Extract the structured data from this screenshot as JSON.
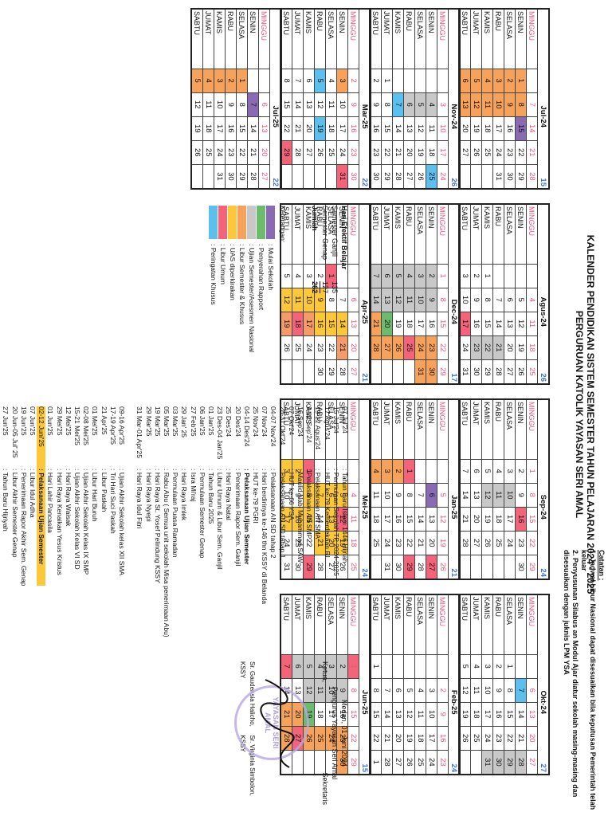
{
  "header": {
    "title_line1": "KALENDER PENDIDIKAN SISTEM SEMESTER  TAHUN PELAJARAN 2024 - 2025",
    "title_line2": "PERGURUAN KATOLIK YAYASAN  SERI AMAL"
  },
  "notes": {
    "heading": "Catatan :",
    "items": [
      "1. Jadwal Libur Nasional dapat disesuaikan bila keputusan Pemerintah telah keluar",
      "2. Penyusunan Silabus an Modul Ajar diatur sekolah masing-masing dan disesuaikan dengan juknis LPM YSA"
    ]
  },
  "day_names": [
    "MINGGU",
    "SENIN",
    "SELASA",
    "RABU",
    "KAMIS",
    "JUMAT",
    "SABTU"
  ],
  "months": [
    {
      "name": "Jul-24",
      "weeks": "15",
      "cols": [
        [
          "",
          "1",
          "2",
          "3",
          "4",
          "5",
          "6"
        ],
        [
          "7",
          "8",
          "9",
          "10",
          "11",
          "12",
          "13"
        ],
        [
          "14",
          "15",
          "16",
          "17",
          "18",
          "19",
          "20"
        ],
        [
          "21",
          "22",
          "23",
          "24",
          "25",
          "26",
          "27"
        ],
        [
          "28",
          "29",
          "30",
          "31",
          "",
          "",
          ""
        ]
      ],
      "colors": {
        "0-1": "orange",
        "0-2": "orange",
        "0-3": "orange",
        "0-4": "orange",
        "0-5": "orange",
        "0-6": "orange",
        "1-1": "orange",
        "1-2": "orange",
        "1-3": "orange",
        "1-4": "orange",
        "1-5": "orange",
        "1-6": "orange",
        "2-1": "purple"
      }
    },
    {
      "name": "Agus-24",
      "weeks": "26",
      "cols": [
        [
          "",
          "",
          "",
          "",
          "1",
          "2",
          "3"
        ],
        [
          "4",
          "5",
          "6",
          "7",
          "8",
          "9",
          "10"
        ],
        [
          "11",
          "12",
          "13",
          "14",
          "15",
          "16",
          "17"
        ],
        [
          "18",
          "19",
          "20",
          "21",
          "22",
          "23",
          "24"
        ],
        [
          "25",
          "26",
          "27",
          "28",
          "29",
          "30",
          "31"
        ]
      ],
      "colors": {
        "2-6": "pink",
        "3-3": "gray",
        "3-4": "gray",
        "3-5": "gray"
      }
    },
    {
      "name": "Sep-24",
      "weeks": "24",
      "cols": [
        [
          "1",
          "2",
          "3",
          "4",
          "5",
          "6",
          "7"
        ],
        [
          "8",
          "9",
          "10",
          "11",
          "12",
          "13",
          "14"
        ],
        [
          "15",
          "16",
          "17",
          "18",
          "19",
          "20",
          "21"
        ],
        [
          "22",
          "23",
          "24",
          "25",
          "26",
          "27",
          "28"
        ],
        [
          "29",
          "30",
          "",
          "",
          "",
          "",
          ""
        ]
      ],
      "colors": {
        "1-2": "gray",
        "1-3": "gray",
        "1-4": "gray",
        "2-1": "pink"
      }
    },
    {
      "name": "Okt-24",
      "weeks": "27",
      "cols": [
        [
          "",
          "",
          "1",
          "2",
          "3",
          "4",
          "5"
        ],
        [
          "6",
          "7",
          "8",
          "9",
          "10",
          "11",
          "12"
        ],
        [
          "13",
          "14",
          "15",
          "16",
          "17",
          "18",
          "19"
        ],
        [
          "20",
          "21",
          "22",
          "23",
          "24",
          "25",
          "26"
        ],
        [
          "27",
          "28",
          "29",
          "30",
          "31",
          "",
          ""
        ]
      ],
      "colors": {
        "1-1": "blue",
        "4-1": "gray",
        "4-2": "gray",
        "4-3": "gray",
        "4-4": "gray"
      }
    },
    {
      "name": "Nov-24",
      "weeks": "26",
      "cols": [
        [
          "",
          "",
          "",
          "",
          "",
          "1",
          "2"
        ],
        [
          "3",
          "4",
          "5",
          "6",
          "7",
          "8",
          "9"
        ],
        [
          "10",
          "11",
          "12",
          "13",
          "14",
          "15",
          "16"
        ],
        [
          "17",
          "18",
          "19",
          "20",
          "21",
          "22",
          "23"
        ],
        [
          "24",
          "25",
          "26",
          "27",
          "28",
          "29",
          "30"
        ]
      ],
      "colors": {
        "1-1": "gray",
        "1-2": "gray",
        "1-3": "gray",
        "1-4": "blue",
        "4-1": "blue"
      }
    },
    {
      "name": "Dec-24",
      "weeks": "17",
      "cols": [
        [
          "1",
          "2",
          "3",
          "4",
          "5",
          "6",
          "7"
        ],
        [
          "8",
          "9",
          "10",
          "11",
          "12",
          "13",
          "14"
        ],
        [
          "15",
          "16",
          "17",
          "18",
          "19",
          "20",
          "21"
        ],
        [
          "22",
          "23",
          "24",
          "25",
          "26",
          "27",
          "28"
        ],
        [
          "29",
          "30",
          "31",
          "",
          "",
          "",
          ""
        ]
      ],
      "colors": {
        "0-1": "gray",
        "0-2": "gray",
        "0-3": "gray",
        "0-4": "gray",
        "0-5": "gray",
        "0-6": "gray",
        "1-1": "gray",
        "1-2": "gray",
        "1-3": "gray",
        "1-4": "gray",
        "1-5": "gray",
        "1-6": "gray",
        "2-5": "green",
        "2-6": "orange",
        "3-1": "orange",
        "3-2": "orange",
        "3-3": "pink",
        "3-4": "orange",
        "3-5": "orange",
        "3-6": "orange",
        "4-1": "orange",
        "4-2": "orange"
      }
    },
    {
      "name": "Jan-25",
      "weeks": "21",
      "cols": [
        [
          "",
          "",
          "",
          "1",
          "2",
          "3",
          "4"
        ],
        [
          "5",
          "6",
          "7",
          "8",
          "9",
          "10",
          "11"
        ],
        [
          "12",
          "13",
          "14",
          "15",
          "16",
          "17",
          "18"
        ],
        [
          "19",
          "20",
          "21",
          "22",
          "23",
          "24",
          "25"
        ],
        [
          "26",
          "27",
          "28",
          "29",
          "30",
          "31",
          ""
        ]
      ],
      "colors": {
        "0-3": "pink",
        "0-4": "orange",
        "0-5": "orange",
        "0-6": "orange",
        "1-1": "purple",
        "4-1": "pink",
        "4-3": "pink"
      }
    },
    {
      "name": "Feb-25",
      "weeks": "24",
      "cols": [
        [
          "",
          "",
          "",
          "",
          "",
          "",
          "1"
        ],
        [
          "2",
          "3",
          "4",
          "5",
          "6",
          "7",
          "8"
        ],
        [
          "9",
          "10",
          "11",
          "12",
          "13",
          "14",
          "15"
        ],
        [
          "16",
          "17",
          "18",
          "19",
          "20",
          "21",
          "22"
        ],
        [
          "23",
          "24",
          "25",
          "26",
          "27",
          "28",
          "1"
        ]
      ],
      "colors": {}
    },
    {
      "name": "Mar-25",
      "weeks": "22",
      "cols": [
        [
          "2",
          "3",
          "4",
          "5",
          "6",
          "7",
          "8"
        ],
        [
          "9",
          "10",
          "11",
          "12",
          "13",
          "14",
          "15"
        ],
        [
          "16",
          "17",
          "18",
          "19",
          "20",
          "21",
          "22"
        ],
        [
          "23",
          "24",
          "25",
          "26",
          "27",
          "28",
          "29"
        ],
        [
          "30",
          "31",
          "",
          "",
          "",
          "",
          ""
        ]
      ],
      "colors": {
        "0-1": "orange",
        "0-3": "blue",
        "2-3": "blue",
        "3-6": "pink",
        "4-1": "pink"
      }
    },
    {
      "name": "Apr-25",
      "weeks": "21",
      "cols": [
        [
          "",
          "",
          "1",
          "2",
          "3",
          "4",
          "5"
        ],
        [
          "6",
          "7",
          "8",
          "9",
          "10",
          "11",
          "12"
        ],
        [
          "13",
          "14",
          "15",
          "16",
          "17",
          "18",
          "19"
        ],
        [
          "20",
          "21",
          "22",
          "23",
          "24",
          "25",
          "26"
        ],
        [
          "27",
          "28",
          "29",
          "30",
          "",
          "",
          ""
        ]
      ],
      "colors": {
        "0-2": "pink",
        "1-3": "yellow",
        "1-4": "yellow",
        "1-5": "yellow",
        "1-6": "yellow",
        "2-1": "yellow",
        "2-2": "yellow",
        "2-3": "yellow",
        "2-4": "salmon",
        "2-5": "pink",
        "2-6": "salmon",
        "3-1": "salmon"
      }
    },
    {
      "name": "Mei-25",
      "weeks": "24",
      "cols": [
        [
          "",
          "",
          "",
          "",
          "1",
          "2",
          "3"
        ],
        [
          "4",
          "5",
          "6",
          "7",
          "8",
          "9",
          "10"
        ],
        [
          "11",
          "12",
          "13",
          "14",
          "15",
          "16",
          "17"
        ],
        [
          "18",
          "19",
          "20",
          "21",
          "22",
          "23",
          "24"
        ],
        [
          "25",
          "26",
          "27",
          "28",
          "29",
          "30",
          "31"
        ]
      ],
      "colors": {
        "0-4": "pink",
        "0-5": "yellow",
        "0-6": "yellow",
        "1-1": "yellow",
        "1-2": "yellow",
        "1-3": "yellow",
        "1-4": "yellow",
        "2-1": "pink",
        "2-2": "yellow",
        "2-4": "yellow",
        "2-5": "yellow",
        "2-6": "yellow",
        "3-1": "yellow",
        "3-2": "yellow",
        "3-3": "yellow",
        "4-4": "pink"
      }
    },
    {
      "name": "Jun-25",
      "weeks": "15",
      "cols": [
        [
          "1",
          "2",
          "3",
          "4",
          "5",
          "6",
          "7"
        ],
        [
          "8",
          "9",
          "10",
          "11",
          "12",
          "13",
          "14"
        ],
        [
          "15",
          "16",
          "17",
          "18",
          "19",
          "20",
          "21"
        ],
        [
          "22",
          "23",
          "24",
          "25",
          "26",
          "27",
          "28"
        ],
        [
          "29",
          "30",
          "",
          "",
          "",
          "",
          ""
        ]
      ],
      "colors": {
        "0-0": "pink",
        "0-1": "gray",
        "0-2": "gray",
        "0-3": "gray",
        "0-4": "gray",
        "0-5": "gray",
        "0-6": "pink",
        "1-1": "gray",
        "1-2": "gray",
        "1-3": "gray",
        "1-4": "gray",
        "2-4": "green",
        "2-5": "orange",
        "2-6": "orange",
        "3-1": "orange",
        "3-2": "orange",
        "3-3": "orange",
        "3-4": "orange",
        "3-5": "pink",
        "3-6": "orange",
        "4-1": "orange"
      }
    },
    {
      "name": "Jul-25",
      "weeks": "22",
      "cols": [
        [
          "",
          "",
          "1",
          "2",
          "3",
          "4",
          "5"
        ],
        [
          "6",
          "7",
          "8",
          "9",
          "10",
          "11",
          "12"
        ],
        [
          "13",
          "14",
          "15",
          "16",
          "17",
          "18",
          "19"
        ],
        [
          "20",
          "21",
          "22",
          "23",
          "24",
          "25",
          "26"
        ],
        [
          "27",
          "28",
          "29",
          "30",
          "31",
          "",
          ""
        ]
      ],
      "colors": {
        "0-2": "orange",
        "0-3": "orange",
        "0-4": "orange",
        "0-5": "orange",
        "0-6": "orange",
        "1-1": "purple"
      }
    }
  ],
  "effective_days": {
    "heading": "Hari Efektif Belajar",
    "rows": [
      {
        "label": "Semester Ganjil",
        "value": "135"
      },
      {
        "label": "Semester Genap",
        "value": "127"
      },
      {
        "label": "Jumlah",
        "value": "262"
      }
    ]
  },
  "legend": {
    "heading": "Keterangan:",
    "items": [
      {
        "color": "#8a6ab5",
        "label": ": Mulai Sekolah"
      },
      {
        "color": "#6dbb6d",
        "label": ": Penyerahan Rapport"
      },
      {
        "color": "#c8c8c8",
        "label": ": Ujian Semester/Asesmen Nasional"
      },
      {
        "color": "#f7a25a",
        "label": ": Libur Semester & Khusus"
      },
      {
        "color": "#fcc83a",
        "label": ": UAS diperkirakan"
      },
      {
        "color": "#f3647a",
        "label": ": Libur Umum"
      },
      {
        "color": "#5cc0ef",
        "label": ": Peringatan Khusus"
      }
    ]
  },
  "events_col1": [
    {
      "date": "07 Jul'24",
      "desc": ": Tahun Baru Islam 1446 Hijriah"
    },
    {
      "date": "15 Jul'24",
      "desc": ": Permulaan Sekolah TP 2024-2025"
    },
    {
      "date": "17 Agus'24",
      "desc": ": HUT ke-79 Kemerdekaan RI"
    },
    {
      "date": "19-22 Agus'24",
      "desc": ": Pelaksanaan AN SMA"
    },
    {
      "date": "9-12 Sep'24",
      "desc": ": Pelaksanaan AN SMP"
    },
    {
      "date": "16 Sep'24",
      "desc": ": Maulid Nabi Muhammad SAW"
    },
    {
      "date": "07 Okt'24",
      "desc": ": HUT ke-66 YSA"
    },
    {
      "date": "28-31 Okt'24",
      "desc": ": Pelaksanaan AN SD tahap 1"
    },
    {
      "date": "04-07 Nov'24",
      "desc": ": Pelaksanaan AN SD tahap 2"
    },
    {
      "date": "07 Nov'24",
      "desc": ": Hari berdirinya ke-146 thn KSSY di Belanda"
    },
    {
      "date": "25 Nov'24",
      "desc": ": HUT ke-79  PGRI"
    },
    {
      "date": "04-14 Des'24",
      "desc": ": Pelaksanaan Ujian Semester",
      "bold": true
    },
    {
      "date": "20 Des'24",
      "desc": ": Penerimaan Rapor Sem. Ganjil"
    },
    {
      "date": "25 Des'24",
      "desc": ": Hari Raya Natal"
    },
    {
      "date": "23 Des-04 Jan'25",
      "desc": ": Libur Umum & Libur Sem. Ganjil"
    },
    {
      "date": "01 Jan'25",
      "desc": ": Tahun Baru 2025"
    },
    {
      "date": "06 Jan'25",
      "desc": ": Permulaan Semester Genap"
    },
    {
      "date": "27 Feb'25",
      "desc": ": Isra Mi'raj"
    },
    {
      "date": "29 Jan' 25",
      "desc": ": Hari Raya Imlek"
    },
    {
      "date": "03 Mar'25",
      "desc": ": Permulaan Puasa Ramadan"
    },
    {
      "date": "05 Mar'25",
      "desc": ": Rabu Abu ( Semua unit sekolah Misa penerimaan Abu)"
    },
    {
      "date": "19 Mar'25",
      "desc": ": Hari Raya St. Yosef Pelindung KSSY"
    },
    {
      "date": "29 Mar'25",
      "desc": ": Hari Raya Nyepi"
    },
    {
      "date": "31 Mar-01 Apr'25",
      "desc": ": Hari Raya Idul Fitri"
    }
  ],
  "events_col2": [
    {
      "date": "09-16 Apr'25",
      "desc": ": Ujian Akhir Sekolah kelas XII SMA"
    },
    {
      "date": "17-19 Apr'25",
      "desc": ": Tri Hari Suci Paskah"
    },
    {
      "date": "21 Apr'25",
      "desc": ": Libur Paskah"
    },
    {
      "date": "01 Mei'25",
      "desc": ": Libur Hari Buruh"
    },
    {
      "date": "02-08 Mei'25",
      "desc": ": Ujian Akhir Sekolah Kelas IX SMP"
    },
    {
      "date": "15-21 Mei'25",
      "desc": ": Ujian Akhir Sekolah Kelas VI SD"
    },
    {
      "date": "12 Mei'25",
      "desc": ": Hari Raya Waisak"
    },
    {
      "date": "29 Mei'25",
      "desc": ": Hari Raya Kenaikan Yesus Kristus"
    },
    {
      "date": "01 Jun'25",
      "desc": ": Hari Lahir Pancasila"
    },
    {
      "date": "02-12 Juni'25",
      "desc": ": Pelaksanaan Ujian Semester",
      "bold": true,
      "highlight": true
    },
    {
      "date": "07 Jun'25",
      "desc": ": Libur Idul Adha"
    },
    {
      "date": "19 Jun'25",
      "desc": ": Penerimaan Rapor Akhir Sem. Genap"
    },
    {
      "date": "20 Jun-05 Jul' 25",
      "desc": ": Libur Akhir Semester Genap"
    },
    {
      "date": "27 Jun'25",
      "desc": ": Tahun Baru Hijriyah"
    },
    {
      "date": "07 Jul'25",
      "desc": ": Permulaan Sekolah TP 2025-2026"
    }
  ],
  "signature": {
    "place_date": "Medan, 01 Juni 2024",
    "org": "Pengurus Yayasan Seri Amal",
    "left_role": "Ketua,",
    "right_role": "Sekretaris",
    "left_name": "Sr. Gaudensia Halicho, KSSY",
    "right_name": "Sr. Virginia Simbolon, KSSY",
    "stamp_text": "YAYASAN SERI AMAL"
  },
  "colors": {
    "orange": "#f7a25a",
    "purple": "#8a6ab5",
    "gray": "#c8c8c8",
    "pink": "#f3647a",
    "green": "#6dbb6d",
    "blue": "#5cc0ef",
    "yellow": "#fcc83a",
    "salmon": "#f59b6a"
  }
}
